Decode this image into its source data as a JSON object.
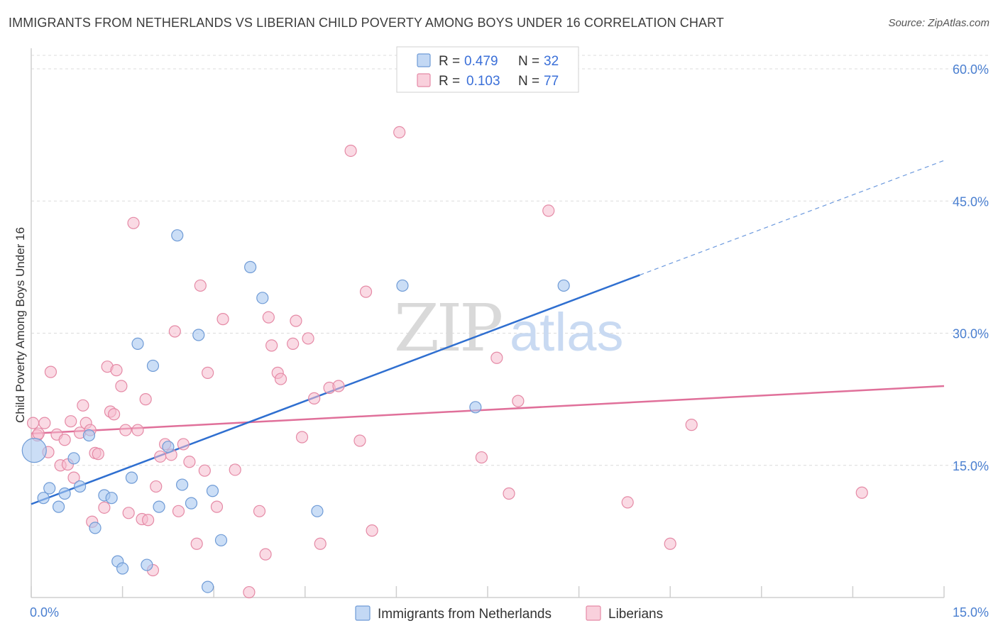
{
  "title": "IMMIGRANTS FROM NETHERLANDS VS LIBERIAN CHILD POVERTY AMONG BOYS UNDER 16 CORRELATION CHART",
  "source": "Source: ZipAtlas.com",
  "watermark": {
    "zip": "ZIP",
    "atlas": "atlas"
  },
  "colors": {
    "blue_fill": "#a9c8f0",
    "blue_stroke": "#6f9bd6",
    "blue_line": "#2f6fd0",
    "pink_fill": "#f6bccd",
    "pink_stroke": "#e58aa6",
    "pink_line": "#e0709a",
    "grid": "#dcdcdc",
    "axis_label": "#4a7fd0"
  },
  "legend": {
    "rows": [
      {
        "r_label": "R = ",
        "r_value": "0.479",
        "n_label": "N = ",
        "n_value": "32"
      },
      {
        "r_label": "R = ",
        "r_value": "0.103",
        "n_label": "N = ",
        "n_value": "77"
      }
    ]
  },
  "chart_data": {
    "type": "scatter",
    "title": "IMMIGRANTS FROM NETHERLANDS VS LIBERIAN CHILD POVERTY AMONG BOYS UNDER 16 CORRELATION CHART",
    "xlabel": "",
    "ylabel": "Child Poverty Among Boys Under 16",
    "xlim": [
      0,
      15
    ],
    "ylim": [
      0,
      60
    ],
    "x_tick_labels": [
      "0.0%",
      "15.0%"
    ],
    "y_ticks": [
      15,
      30,
      45,
      60
    ],
    "y_tick_labels": [
      "15.0%",
      "30.0%",
      "45.0%",
      "60.0%"
    ],
    "grid": true,
    "legend_position": "top-center",
    "series": [
      {
        "name": "Immigrants from Netherlands",
        "color": "#a9c8f0",
        "points": [
          [
            0.05,
            16.7
          ],
          [
            0.2,
            11.3
          ],
          [
            0.3,
            12.4
          ],
          [
            0.45,
            10.3
          ],
          [
            0.55,
            11.8
          ],
          [
            0.7,
            15.8
          ],
          [
            0.8,
            12.6
          ],
          [
            0.95,
            18.4
          ],
          [
            1.05,
            7.9
          ],
          [
            1.2,
            11.6
          ],
          [
            1.32,
            11.3
          ],
          [
            1.42,
            4.1
          ],
          [
            1.5,
            3.3
          ],
          [
            1.65,
            13.6
          ],
          [
            1.75,
            28.8
          ],
          [
            1.9,
            3.7
          ],
          [
            2.0,
            26.3
          ],
          [
            2.1,
            10.3
          ],
          [
            2.25,
            17.1
          ],
          [
            2.4,
            41.1
          ],
          [
            2.48,
            12.8
          ],
          [
            2.63,
            10.7
          ],
          [
            2.75,
            29.8
          ],
          [
            2.9,
            1.2
          ],
          [
            2.98,
            12.1
          ],
          [
            3.12,
            6.5
          ],
          [
            3.6,
            37.5
          ],
          [
            3.8,
            34.0
          ],
          [
            4.7,
            9.8
          ],
          [
            6.1,
            35.4
          ],
          [
            7.3,
            21.6
          ],
          [
            8.75,
            35.4
          ]
        ]
      },
      {
        "name": "Liberians",
        "color": "#f6bccd",
        "points": [
          [
            0.03,
            19.8
          ],
          [
            0.1,
            18.4
          ],
          [
            0.22,
            19.8
          ],
          [
            0.28,
            16.5
          ],
          [
            0.32,
            25.6
          ],
          [
            0.42,
            18.5
          ],
          [
            0.48,
            15.0
          ],
          [
            0.55,
            17.9
          ],
          [
            0.6,
            15.1
          ],
          [
            0.65,
            20.0
          ],
          [
            0.7,
            13.6
          ],
          [
            0.8,
            18.7
          ],
          [
            0.85,
            21.8
          ],
          [
            0.9,
            19.8
          ],
          [
            0.97,
            19.0
          ],
          [
            1.0,
            8.6
          ],
          [
            1.05,
            16.4
          ],
          [
            1.1,
            16.3
          ],
          [
            1.2,
            10.2
          ],
          [
            1.25,
            26.2
          ],
          [
            1.3,
            21.1
          ],
          [
            1.36,
            20.8
          ],
          [
            1.4,
            25.8
          ],
          [
            1.48,
            24.0
          ],
          [
            1.55,
            19.0
          ],
          [
            1.6,
            9.6
          ],
          [
            1.68,
            42.5
          ],
          [
            1.75,
            19.0
          ],
          [
            1.82,
            8.9
          ],
          [
            1.88,
            22.5
          ],
          [
            1.92,
            8.8
          ],
          [
            2.0,
            3.1
          ],
          [
            2.05,
            12.6
          ],
          [
            2.12,
            16.0
          ],
          [
            2.2,
            17.4
          ],
          [
            2.3,
            16.2
          ],
          [
            2.36,
            30.2
          ],
          [
            2.42,
            9.8
          ],
          [
            2.5,
            17.4
          ],
          [
            2.6,
            15.4
          ],
          [
            2.72,
            6.1
          ],
          [
            2.78,
            35.4
          ],
          [
            2.85,
            14.4
          ],
          [
            2.9,
            25.5
          ],
          [
            3.05,
            10.3
          ],
          [
            3.15,
            31.6
          ],
          [
            3.35,
            14.5
          ],
          [
            3.58,
            0.6
          ],
          [
            3.75,
            9.8
          ],
          [
            3.85,
            4.9
          ],
          [
            3.9,
            31.8
          ],
          [
            3.95,
            28.6
          ],
          [
            4.05,
            25.5
          ],
          [
            4.1,
            24.8
          ],
          [
            4.3,
            28.8
          ],
          [
            4.35,
            31.4
          ],
          [
            4.45,
            18.2
          ],
          [
            4.55,
            29.4
          ],
          [
            4.65,
            22.6
          ],
          [
            4.75,
            6.1
          ],
          [
            4.9,
            23.8
          ],
          [
            5.05,
            24.0
          ],
          [
            5.25,
            50.7
          ],
          [
            5.4,
            17.8
          ],
          [
            5.5,
            34.7
          ],
          [
            5.6,
            7.6
          ],
          [
            6.05,
            52.8
          ],
          [
            7.4,
            15.9
          ],
          [
            7.65,
            27.2
          ],
          [
            7.85,
            11.8
          ],
          [
            8.0,
            22.3
          ],
          [
            8.5,
            43.9
          ],
          [
            9.8,
            10.8
          ],
          [
            10.5,
            6.1
          ],
          [
            10.85,
            19.6
          ],
          [
            13.65,
            11.9
          ],
          [
            0.12,
            18.6
          ]
        ]
      }
    ],
    "trendlines": [
      {
        "series": "Immigrants from Netherlands",
        "x0": 0,
        "y0": 10.6,
        "x1": 10.0,
        "y1": 36.6,
        "dashed_to_x": 15,
        "dashed_to_y": 49.6
      },
      {
        "series": "Liberians",
        "x0": 0,
        "y0": 18.6,
        "x1": 15,
        "y1": 24.0
      }
    ]
  }
}
